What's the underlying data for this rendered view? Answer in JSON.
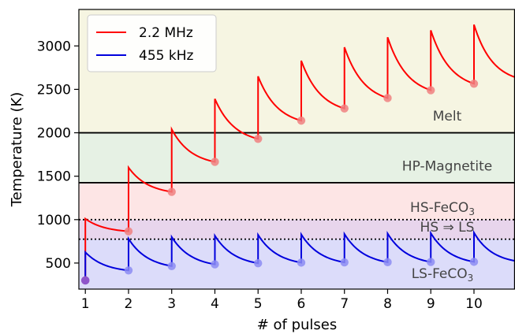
{
  "chart_data": {
    "type": "line",
    "xlabel": "# of pulses",
    "ylabel": "Temperature (K)",
    "xlim": [
      0.85,
      10.95
    ],
    "ylim": [
      200,
      3420
    ],
    "xticks": [
      1,
      2,
      3,
      4,
      5,
      6,
      7,
      8,
      9,
      10
    ],
    "yticks": [
      500,
      1000,
      1500,
      2000,
      2500,
      3000
    ],
    "grid": false,
    "legend_position": "top-left",
    "regions": [
      {
        "name": "LS-FeCO",
        "subscript": "3",
        "y0": 200,
        "y1": 775,
        "color": "#dcdcfa"
      },
      {
        "name": "HS ⇒ LS",
        "y0": 775,
        "y1": 1000,
        "color": "#e8d5ec"
      },
      {
        "name": "HS-FeCO",
        "subscript": "3",
        "y0": 1000,
        "y1": 1425,
        "color": "#fde5e5"
      },
      {
        "name": "HP-Magnetite",
        "y0": 1425,
        "y1": 2000,
        "color": "#e6f1e4"
      },
      {
        "name": "Melt",
        "y0": 2000,
        "y1": 3420,
        "color": "#f6f5e2"
      }
    ],
    "solid_lines": [
      1425,
      2000
    ],
    "dotted_lines": [
      775,
      1000
    ],
    "series": [
      {
        "name": "2.2 MHz",
        "color": "#ff0000",
        "marker_color": "#f08080",
        "start": 300,
        "peaks": [
          1010,
          1600,
          2040,
          2390,
          2650,
          2830,
          2985,
          3100,
          3180,
          3245
        ],
        "troughs": [
          865,
          1320,
          1665,
          1930,
          2140,
          2280,
          2400,
          2490,
          2565
        ],
        "end_value": 2640
      },
      {
        "name": "455 kHz",
        "color": "#0000dd",
        "marker_color": "#8c8cf2",
        "start": 300,
        "peaks": [
          625,
          780,
          800,
          815,
          825,
          830,
          835,
          840,
          845,
          850
        ],
        "troughs": [
          415,
          465,
          485,
          498,
          505,
          508,
          510,
          512,
          514
        ],
        "end_value": 525
      }
    ]
  }
}
